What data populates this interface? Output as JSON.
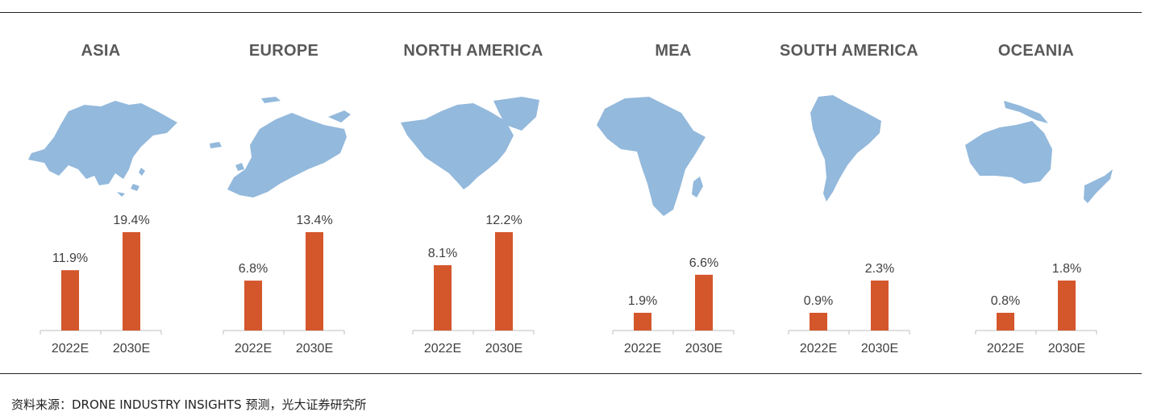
{
  "colors": {
    "bar": "#D4562B",
    "map": "#93B9DC",
    "axis": "#BFBFBF",
    "label": "#404040"
  },
  "chart_data": [
    {
      "type": "bar",
      "title": "ASIA",
      "categories": [
        "2022E",
        "2030E"
      ],
      "values": [
        11.9,
        19.4
      ],
      "labels": [
        "11.9%",
        "19.4%"
      ],
      "ylim": [
        0,
        20
      ]
    },
    {
      "type": "bar",
      "title": "EUROPE",
      "categories": [
        "2022E",
        "2030E"
      ],
      "values": [
        6.8,
        13.4
      ],
      "labels": [
        "6.8%",
        "13.4%"
      ],
      "ylim": [
        0,
        14
      ]
    },
    {
      "type": "bar",
      "title": "NORTH AMERICA",
      "categories": [
        "2022E",
        "2030E"
      ],
      "values": [
        8.1,
        12.2
      ],
      "labels": [
        "8.1%",
        "12.2%"
      ],
      "ylim": [
        0,
        14
      ]
    },
    {
      "type": "bar",
      "title": "MEA",
      "categories": [
        "2022E",
        "2030E"
      ],
      "values": [
        1.9,
        6.6
      ],
      "labels": [
        "1.9%",
        "6.6%"
      ],
      "ylim": [
        0,
        7
      ]
    },
    {
      "type": "bar",
      "title": "SOUTH AMERICA",
      "categories": [
        "2022E",
        "2030E"
      ],
      "values": [
        0.9,
        2.3
      ],
      "labels": [
        "0.9%",
        "2.3%"
      ],
      "ylim": [
        0,
        3
      ]
    },
    {
      "type": "bar",
      "title": "OCEANIA",
      "categories": [
        "2022E",
        "2030E"
      ],
      "values": [
        0.8,
        1.8
      ],
      "labels": [
        "0.8%",
        "1.8%"
      ],
      "ylim": [
        0,
        2.5
      ]
    }
  ],
  "maps": [
    "asia-map-icon",
    "europe-map-icon",
    "north-america-map-icon",
    "africa-map-icon",
    "south-america-map-icon",
    "oceania-map-icon"
  ],
  "footer": {
    "source": "资料来源：DRONE INDUSTRY INSIGHTS 预测，光大证券研究所"
  }
}
